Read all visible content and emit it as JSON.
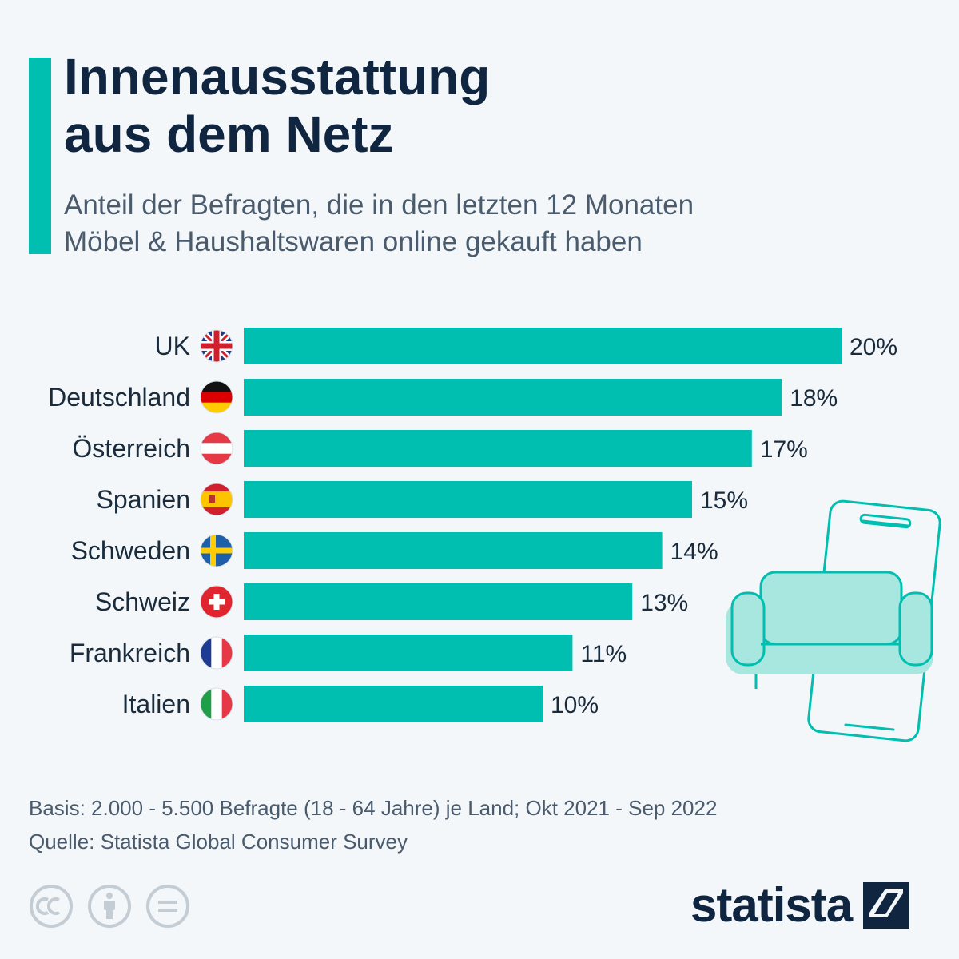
{
  "header": {
    "title_line1": "Innenausstattung",
    "title_line2": "aus dem Netz",
    "subtitle_line1": "Anteil der Befragten, die in den letzten 12 Monaten",
    "subtitle_line2": "Möbel & Haushaltswaren online gekauft haben"
  },
  "colors": {
    "accent": "#00bfb0",
    "bar": "#00bfb0",
    "title": "#0f2540",
    "illustration_fill": "#a8e6e0"
  },
  "chart_data": {
    "type": "bar",
    "orientation": "horizontal",
    "categories": [
      "UK",
      "Deutschland",
      "Österreich",
      "Spanien",
      "Schweden",
      "Schweiz",
      "Frankreich",
      "Italien"
    ],
    "values": [
      20,
      18,
      17,
      15,
      14,
      13,
      11,
      10
    ],
    "value_labels": [
      "20%",
      "18%",
      "17%",
      "15%",
      "14%",
      "13%",
      "11%",
      "10%"
    ],
    "flags": [
      "flag-uk",
      "flag-germany",
      "flag-austria",
      "flag-spain",
      "flag-sweden",
      "flag-switzerland",
      "flag-france",
      "flag-italy"
    ],
    "unit": "%",
    "xlim": [
      0,
      20
    ],
    "grid": false,
    "legend": "none"
  },
  "illustration": {
    "icon": "smartphone-sofa-illustration"
  },
  "footer": {
    "basis": "Basis: 2.000 - 5.500 Befragte (18 - 64 Jahre) je Land; Okt 2021 - Sep 2022",
    "source": "Quelle: Statista Global Consumer Survey"
  },
  "license_icons": [
    "cc-icon",
    "attribution-icon",
    "no-derivatives-icon"
  ],
  "logo": {
    "text": "statista",
    "icon": "statista-logo-icon"
  }
}
